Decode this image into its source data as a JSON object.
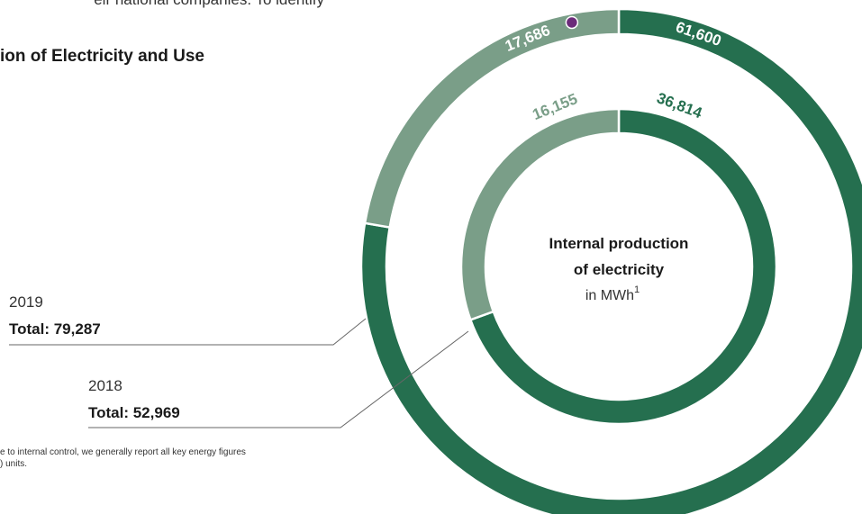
{
  "page": {
    "intro_fragment": "eir national companies. To identify",
    "section_title_fragment": "ion of Electricity and Use",
    "footnote_line1": "e to internal control, we generally report all key energy figures",
    "footnote_line2": ") units."
  },
  "colors": {
    "dark_green": "#256f4f",
    "light_green": "#7a9e88",
    "badge": "#6b2b7a",
    "leader_line": "#666666"
  },
  "chart_data": {
    "type": "pie",
    "variant": "nested-donut",
    "title": "Internal production",
    "title_line2": "of electricity",
    "unit_text": "in MWh",
    "unit_sup": "1",
    "series": [
      {
        "name": "2019",
        "year_label": "2019",
        "total_label": "Total: 79,287",
        "total": 79287,
        "ring": "outer",
        "slices": [
          {
            "label": "61,600",
            "value": 61600,
            "color": "#256f4f"
          },
          {
            "label": "17,686",
            "value": 17686,
            "color": "#7a9e88",
            "badge": true
          }
        ]
      },
      {
        "name": "2018",
        "year_label": "2018",
        "total_label": "Total: 52,969",
        "total": 52969,
        "ring": "inner",
        "slices": [
          {
            "label": "36,814",
            "value": 36814,
            "color": "#256f4f"
          },
          {
            "label": "16,155",
            "value": 16155,
            "color": "#7a9e88"
          }
        ]
      }
    ]
  }
}
